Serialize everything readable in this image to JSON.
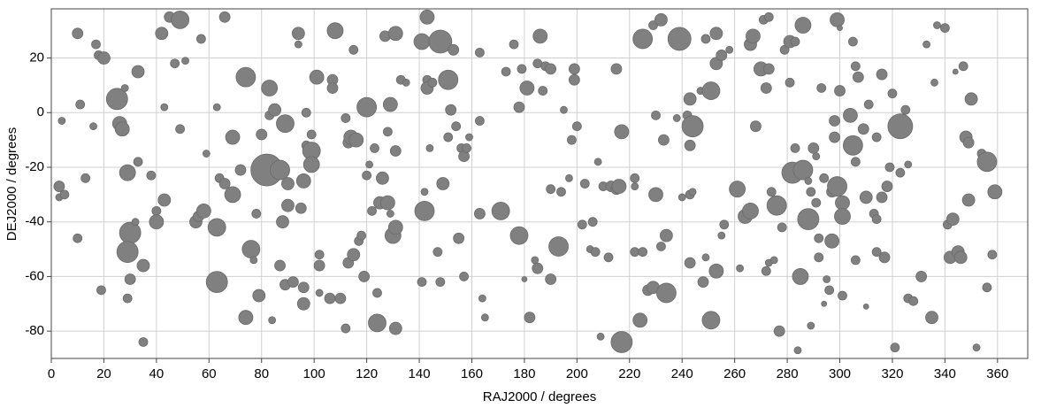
{
  "chart_data": {
    "type": "scatter",
    "x_label": "RAJ2000 / degrees",
    "y_label": "DEJ2000 / degrees",
    "color": "#808080",
    "grid": true,
    "xlim": [
      0,
      371.5
    ],
    "ylim": [
      -90,
      38
    ],
    "xticks": [
      0,
      20,
      40,
      60,
      80,
      100,
      120,
      140,
      160,
      180,
      200,
      220,
      240,
      260,
      280,
      300,
      320,
      340,
      360
    ],
    "yticks": [
      -80,
      -60,
      -40,
      -20,
      0,
      20
    ],
    "x": [
      3,
      3,
      5,
      4,
      10,
      11,
      10,
      13,
      16,
      17,
      18,
      20,
      19,
      25,
      26,
      27,
      28,
      29,
      30,
      29,
      30,
      29,
      32,
      33,
      33,
      35,
      35,
      38,
      40,
      40,
      42,
      43,
      43,
      45,
      47,
      49,
      49,
      51,
      55,
      56,
      58,
      57,
      59,
      63,
      63,
      63,
      64,
      66,
      66,
      69,
      69,
      72,
      74,
      74,
      76,
      77,
      78,
      79,
      80,
      82,
      84,
      83,
      83,
      85,
      87,
      87,
      88,
      89,
      90,
      89,
      90,
      92,
      94,
      94,
      95,
      96,
      96,
      96,
      97,
      97,
      99,
      99,
      99,
      101,
      102,
      102,
      102,
      106,
      107,
      107,
      108,
      110,
      112,
      112,
      113,
      113,
      114,
      115,
      115,
      116,
      117,
      118,
      119,
      120,
      120,
      121,
      122,
      123,
      124,
      124,
      125,
      126,
      127,
      128,
      128,
      129,
      129,
      130,
      131,
      131,
      131,
      131,
      133,
      135,
      141,
      141,
      142,
      142,
      143,
      143,
      143,
      144,
      145,
      147,
      148,
      148,
      149,
      151,
      151,
      152,
      153,
      154,
      155,
      156,
      157,
      157,
      158,
      159,
      163,
      163,
      163,
      164,
      165,
      171,
      173,
      176,
      178,
      178,
      179,
      180,
      181,
      182,
      184,
      185,
      185,
      186,
      187,
      188,
      190,
      190,
      190,
      193,
      194,
      195,
      197,
      198,
      199,
      199,
      200,
      202,
      203,
      205,
      206,
      207,
      208,
      209,
      210,
      212,
      213,
      215,
      215,
      216,
      217,
      217,
      222,
      222,
      222,
      224,
      225,
      225,
      227,
      229,
      229,
      230,
      230,
      232,
      232,
      233,
      234,
      234,
      238,
      239,
      240,
      242,
      243,
      243,
      244,
      243,
      243,
      244,
      247,
      248,
      249,
      249,
      251,
      251,
      253,
      253,
      253,
      255,
      255,
      256,
      258,
      261,
      262,
      264,
      266,
      266,
      267,
      268,
      270,
      271,
      272,
      272,
      273,
      273,
      273,
      274,
      275,
      276,
      277,
      278,
      279,
      281,
      281,
      282,
      283,
      283,
      284,
      285,
      286,
      286,
      288,
      288,
      289,
      289,
      290,
      291,
      291,
      292,
      292,
      293,
      294,
      294,
      295,
      296,
      297,
      297,
      298,
      298,
      299,
      299,
      300,
      300,
      301,
      301,
      301,
      304,
      305,
      305,
      306,
      306,
      306,
      307,
      309,
      310,
      310,
      311,
      313,
      314,
      314,
      314,
      316,
      316,
      317,
      318,
      319,
      320,
      321,
      323,
      323,
      325,
      326,
      326,
      328,
      331,
      333,
      335,
      336,
      337,
      340,
      341,
      342,
      343,
      344,
      345,
      346,
      347,
      348,
      349,
      350,
      349,
      352,
      354,
      356,
      356,
      358,
      359
    ],
    "values": [
      -27,
      -31,
      -30,
      -3,
      29,
      3,
      -46,
      -24,
      -5,
      25,
      21,
      20,
      -65,
      5,
      -4,
      -6,
      9,
      -22,
      -44,
      -51,
      -61,
      -68,
      -40,
      -18,
      15,
      -56,
      -84,
      -23,
      -36,
      -40,
      29,
      2,
      -32,
      35,
      18,
      34,
      -6,
      19,
      -40,
      -38,
      -36,
      27,
      -15,
      2,
      -42,
      -62,
      -24,
      35,
      -26,
      -9,
      -30,
      -21,
      13,
      -75,
      -50,
      -54,
      -37,
      -67,
      -8,
      -21,
      -76,
      9,
      -1,
      1,
      -21,
      -56,
      -40,
      -4,
      -26,
      -63,
      -34,
      -62,
      29,
      25,
      -35,
      -25,
      -64,
      -70,
      -12,
      0,
      -14,
      -19,
      -8,
      13,
      -56,
      -52,
      -66,
      -68,
      12,
      9,
      30,
      -68,
      -79,
      -2,
      -11,
      -55,
      -9,
      -52,
      23,
      -10,
      -47,
      -45,
      -60,
      2,
      -23,
      -19,
      -36,
      -13,
      -77,
      -66,
      -33,
      -24,
      28,
      -33,
      -7,
      3,
      -37,
      -45,
      -42,
      -79,
      -14,
      29,
      12,
      11,
      26,
      -62,
      -29,
      -36,
      35,
      12,
      9,
      -13,
      11,
      -51,
      26,
      -62,
      -26,
      -9,
      12,
      1,
      23,
      -5,
      -46,
      -13,
      -16,
      -60,
      -13,
      -9,
      -3,
      -37,
      22,
      -68,
      -75,
      -36,
      15,
      25,
      -45,
      2,
      16,
      -61,
      9,
      -75,
      -54,
      -57,
      18,
      28,
      8,
      17,
      16,
      -28,
      -61,
      -49,
      -29,
      1,
      -24,
      -10,
      16,
      12,
      -5,
      -41,
      -26,
      -50,
      -40,
      -51,
      -18,
      -82,
      -27,
      -53,
      -27,
      16,
      -28,
      -27,
      -84,
      -7,
      -24,
      -27,
      -51,
      -76,
      -51,
      27,
      -65,
      -64,
      32,
      -30,
      -1,
      34,
      -49,
      -10,
      -66,
      -45,
      -2,
      27,
      -31,
      -1,
      5,
      -55,
      -5,
      -12,
      -30,
      -29,
      8,
      -62,
      27,
      -53,
      8,
      -76,
      -58,
      29,
      18,
      21,
      -45,
      -41,
      23,
      -28,
      -57,
      -38,
      25,
      -36,
      28,
      -5,
      16,
      34,
      -58,
      9,
      -55,
      16,
      35,
      -29,
      -54,
      -34,
      -80,
      -42,
      23,
      26,
      11,
      -22,
      -13,
      26,
      -87,
      -60,
      32,
      -21,
      -39,
      -25,
      -29,
      -78,
      -13,
      -16,
      -33,
      -46,
      -53,
      9,
      -70,
      -24,
      -61,
      -65,
      -47,
      -29,
      -3,
      -9,
      -27,
      34,
      31,
      8,
      -33,
      -38,
      -67,
      -1,
      -12,
      26,
      -54,
      17,
      -18,
      13,
      -6,
      -71,
      -31,
      3,
      -37,
      -39,
      -51,
      -9,
      14,
      -31,
      -53,
      -27,
      -20,
      7,
      -86,
      -5,
      -22,
      1,
      -68,
      -19,
      -69,
      -60,
      25,
      -75,
      11,
      32,
      31,
      -41,
      -53,
      -39,
      15,
      -51,
      -53,
      17,
      -9,
      -11,
      5,
      -32,
      -86,
      -15,
      -18,
      -64,
      -52,
      -29
    ],
    "sizes": [
      6,
      4,
      5,
      4,
      6,
      5,
      5,
      5,
      4,
      5,
      5,
      7,
      5,
      12,
      8,
      8,
      4,
      9,
      12,
      12,
      6,
      5,
      4,
      5,
      7,
      7,
      5,
      5,
      5,
      8,
      7,
      4,
      7,
      6,
      5,
      10,
      5,
      4,
      7,
      6,
      8,
      5,
      4,
      4,
      10,
      12,
      5,
      6,
      6,
      8,
      9,
      6,
      11,
      8,
      10,
      4,
      5,
      7,
      6,
      18,
      4,
      9,
      5,
      7,
      11,
      6,
      7,
      10,
      7,
      6,
      7,
      6,
      7,
      4,
      6,
      8,
      6,
      7,
      5,
      5,
      10,
      9,
      5,
      8,
      6,
      5,
      4,
      6,
      6,
      6,
      9,
      6,
      5,
      5,
      6,
      6,
      8,
      7,
      5,
      8,
      5,
      5,
      6,
      11,
      5,
      4,
      5,
      5,
      10,
      5,
      7,
      7,
      6,
      8,
      5,
      8,
      4,
      9,
      8,
      7,
      6,
      8,
      5,
      4,
      9,
      5,
      4,
      11,
      8,
      5,
      7,
      4,
      5,
      5,
      13,
      5,
      7,
      5,
      11,
      6,
      6,
      5,
      6,
      5,
      6,
      5,
      5,
      4,
      5,
      6,
      5,
      4,
      4,
      10,
      5,
      5,
      10,
      6,
      5,
      3,
      8,
      6,
      4,
      6,
      5,
      8,
      5,
      5,
      6,
      5,
      6,
      11,
      5,
      4,
      4,
      5,
      6,
      6,
      5,
      5,
      5,
      4,
      5,
      5,
      4,
      4,
      5,
      5,
      6,
      6,
      6,
      8,
      12,
      8,
      5,
      4,
      5,
      8,
      5,
      11,
      6,
      7,
      5,
      8,
      5,
      7,
      5,
      6,
      11,
      7,
      4,
      13,
      4,
      5,
      7,
      6,
      12,
      6,
      5,
      4,
      4,
      6,
      5,
      4,
      10,
      10,
      8,
      7,
      7,
      6,
      4,
      5,
      4,
      9,
      4,
      8,
      7,
      9,
      8,
      6,
      8,
      5,
      5,
      6,
      4,
      6,
      5,
      5,
      4,
      11,
      6,
      5,
      5,
      7,
      5,
      12,
      5,
      5,
      4,
      9,
      9,
      11,
      12,
      4,
      5,
      4,
      6,
      4,
      5,
      5,
      5,
      5,
      3,
      5,
      4,
      5,
      8,
      6,
      6,
      6,
      11,
      8,
      3,
      6,
      8,
      9,
      5,
      8,
      11,
      5,
      5,
      5,
      5,
      6,
      6,
      3,
      7,
      5,
      5,
      5,
      5,
      5,
      6,
      6,
      6,
      6,
      5,
      5,
      5,
      14,
      5,
      5,
      5,
      4,
      5,
      6,
      4,
      7,
      4,
      4,
      5,
      5,
      7,
      7,
      3,
      7,
      7,
      5,
      7,
      6,
      7,
      7,
      4,
      5,
      11,
      5,
      5,
      8
    ]
  }
}
